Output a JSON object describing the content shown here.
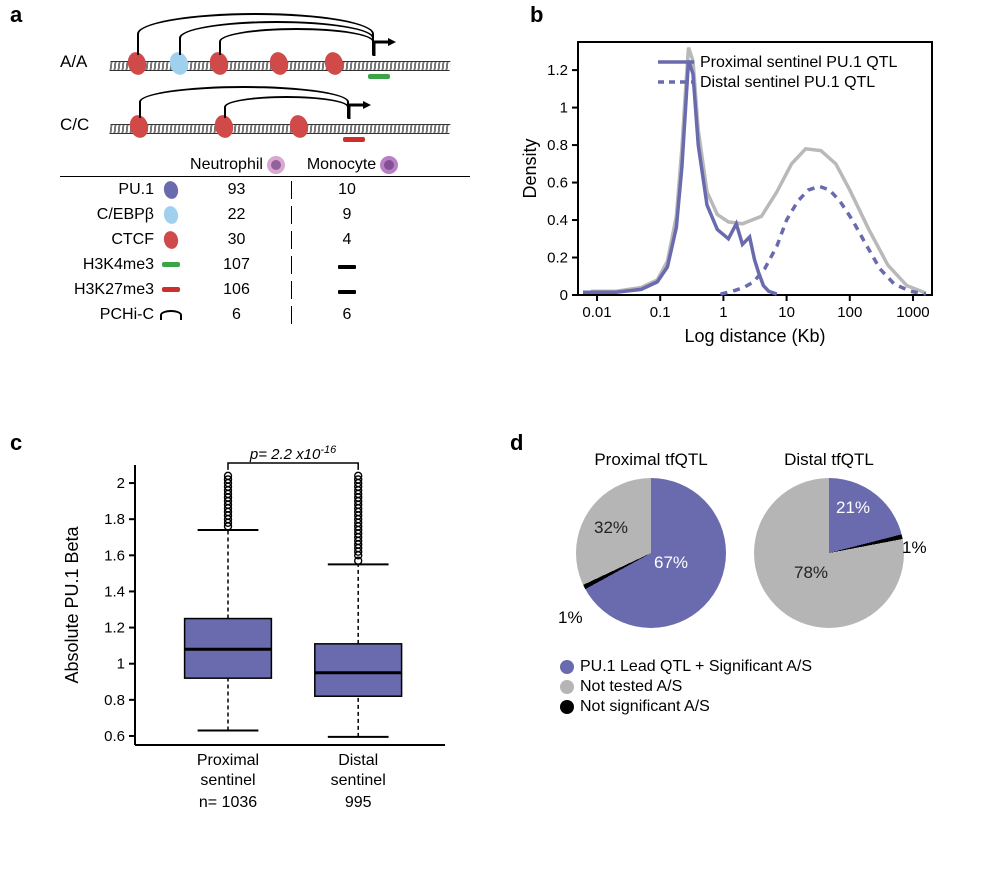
{
  "colors": {
    "pu1_purple": "#6a6aae",
    "cebp_blue": "#9fd1ee",
    "ctcf_red": "#cf4a48",
    "h3k4_green": "#3aa546",
    "h3k27_red": "#cf2f2a",
    "gray_line": "#b9b9b9",
    "black": "#000000",
    "background": "#ffffff",
    "panel_d_gray": "#b5b5b5",
    "neutrophil": "#d9a8d2",
    "monocyte": "#b97fc4"
  },
  "panel_labels": {
    "a": "a",
    "b": "b",
    "c": "c",
    "d": "d"
  },
  "panel_a": {
    "allele_top": "A/A",
    "allele_bottom": "C/C",
    "headers": {
      "col1": "Neutrophil",
      "col2": "Monocyte"
    },
    "rows": [
      {
        "key": "PU.1",
        "swatch": "oval",
        "color_key": "pu1_purple",
        "v1": "93",
        "v2": "10"
      },
      {
        "key": "C/EBPβ",
        "swatch": "oval",
        "color_key": "cebp_blue",
        "v1": "22",
        "v2": "9"
      },
      {
        "key": "CTCF",
        "swatch": "oval",
        "color_key": "ctcf_red",
        "v1": "30",
        "v2": "4"
      },
      {
        "key": "H3K4me3",
        "swatch": "bar",
        "color_key": "h3k4_green",
        "v1": "107",
        "v2": "—"
      },
      {
        "key": "H3K27me3",
        "swatch": "bar",
        "color_key": "h3k27_red",
        "v1": "106",
        "v2": "—"
      },
      {
        "key": "PCHi-C",
        "swatch": "arc",
        "color_key": "black",
        "v1": "6",
        "v2": "6"
      }
    ]
  },
  "panel_b": {
    "legend_solid": "Proximal sentinel PU.1 QTL",
    "legend_dashed": "Distal sentinel PU.1 QTL",
    "y_label": "Density",
    "x_label": "Log distance (Kb)",
    "x_ticks": [
      "0.01",
      "0.1",
      "1",
      "10",
      "100",
      "1000"
    ],
    "y_ticks": [
      "0",
      "0.2",
      "0.4",
      "0.6",
      "0.8",
      "1",
      "1.2"
    ],
    "xlim": [
      0.005,
      2000
    ],
    "ylim": [
      0,
      1.35
    ],
    "curve_gray": {
      "color_key": "gray_line",
      "width": 3.5,
      "style": "solid",
      "points": [
        [
          0.008,
          0.02
        ],
        [
          0.02,
          0.02
        ],
        [
          0.05,
          0.04
        ],
        [
          0.09,
          0.08
        ],
        [
          0.13,
          0.18
        ],
        [
          0.18,
          0.42
        ],
        [
          0.22,
          0.78
        ],
        [
          0.25,
          1.08
        ],
        [
          0.28,
          1.32
        ],
        [
          0.33,
          1.25
        ],
        [
          0.4,
          0.88
        ],
        [
          0.55,
          0.55
        ],
        [
          0.8,
          0.43
        ],
        [
          1.2,
          0.39
        ],
        [
          2,
          0.38
        ],
        [
          4,
          0.42
        ],
        [
          7,
          0.55
        ],
        [
          12,
          0.7
        ],
        [
          20,
          0.78
        ],
        [
          35,
          0.77
        ],
        [
          60,
          0.7
        ],
        [
          100,
          0.56
        ],
        [
          200,
          0.35
        ],
        [
          400,
          0.16
        ],
        [
          800,
          0.05
        ],
        [
          1600,
          0.01
        ]
      ]
    },
    "curve_solid": {
      "color_key": "pu1_purple",
      "width": 3.5,
      "style": "solid",
      "points": [
        [
          0.006,
          0.015
        ],
        [
          0.02,
          0.015
        ],
        [
          0.05,
          0.03
        ],
        [
          0.09,
          0.07
        ],
        [
          0.13,
          0.15
        ],
        [
          0.18,
          0.36
        ],
        [
          0.22,
          0.68
        ],
        [
          0.25,
          0.98
        ],
        [
          0.28,
          1.25
        ],
        [
          0.33,
          1.18
        ],
        [
          0.4,
          0.8
        ],
        [
          0.55,
          0.48
        ],
        [
          0.8,
          0.35
        ],
        [
          1.2,
          0.3
        ],
        [
          1.6,
          0.38
        ],
        [
          2.0,
          0.27
        ],
        [
          2.6,
          0.31
        ],
        [
          3.1,
          0.19
        ],
        [
          3.6,
          0.12
        ],
        [
          4.3,
          0.05
        ],
        [
          5.2,
          0.02
        ],
        [
          7,
          0.005
        ]
      ]
    },
    "curve_dashed": {
      "color_key": "pu1_purple",
      "width": 3.5,
      "style": "dashed",
      "points": [
        [
          0.9,
          0.005
        ],
        [
          1.4,
          0.02
        ],
        [
          2.1,
          0.04
        ],
        [
          3,
          0.07
        ],
        [
          4.5,
          0.14
        ],
        [
          7,
          0.26
        ],
        [
          10,
          0.4
        ],
        [
          15,
          0.5
        ],
        [
          22,
          0.56
        ],
        [
          33,
          0.58
        ],
        [
          48,
          0.56
        ],
        [
          70,
          0.5
        ],
        [
          110,
          0.4
        ],
        [
          180,
          0.27
        ],
        [
          300,
          0.14
        ],
        [
          500,
          0.06
        ],
        [
          900,
          0.02
        ],
        [
          1600,
          0.005
        ]
      ]
    }
  },
  "panel_c": {
    "p_text_prefix": "p= 2.2 x10",
    "p_exp": "-16",
    "y_label": "Absolute PU.1 Beta",
    "y_ticks": [
      "0.6",
      "0.8",
      "1",
      "1.2",
      "1.4",
      "1.6",
      "1.8",
      "2"
    ],
    "ylim": [
      0.55,
      2.1
    ],
    "box_color_key": "pu1_purple",
    "boxes": [
      {
        "x": 1,
        "label_top": "Proximal",
        "label_bot": "sentinel",
        "n_label": "n= 1036",
        "q1": 0.92,
        "median": 1.08,
        "q3": 1.25,
        "whisker_low": 0.63,
        "whisker_high": 1.74,
        "outliers": [
          1.76,
          1.78,
          1.8,
          1.82,
          1.84,
          1.86,
          1.88,
          1.9,
          1.92,
          1.94,
          1.96,
          1.98,
          2.0,
          2.02,
          2.04
        ]
      },
      {
        "x": 2,
        "label_top": "Distal",
        "label_bot": "sentinel",
        "n_label": "995",
        "q1": 0.82,
        "median": 0.95,
        "q3": 1.11,
        "whisker_low": 0.595,
        "whisker_high": 1.55,
        "outliers": [
          1.57,
          1.6,
          1.62,
          1.64,
          1.66,
          1.68,
          1.7,
          1.72,
          1.74,
          1.76,
          1.78,
          1.8,
          1.82,
          1.84,
          1.86,
          1.88,
          1.9,
          1.92,
          1.94,
          1.96,
          1.98,
          2.0,
          2.02,
          2.04
        ]
      }
    ]
  },
  "panel_d": {
    "titles": {
      "left": "Proximal tfQTL",
      "right": "Distal tfQTL"
    },
    "slices_left": [
      {
        "label": "67%",
        "pct": 67,
        "color_key": "pu1_purple"
      },
      {
        "label": "1%",
        "pct": 1,
        "color_key": "black"
      },
      {
        "label": "32%",
        "pct": 32,
        "color_key": "panel_d_gray"
      }
    ],
    "slices_right": [
      {
        "label": "21%",
        "pct": 21,
        "color_key": "pu1_purple"
      },
      {
        "label": "1%",
        "pct": 1,
        "color_key": "black"
      },
      {
        "label": "78%",
        "pct": 78,
        "color_key": "panel_d_gray"
      }
    ],
    "legend": [
      {
        "text": "PU.1 Lead QTL + Significant A/S",
        "color_key": "pu1_purple"
      },
      {
        "text": "Not tested A/S",
        "color_key": "panel_d_gray"
      },
      {
        "text": "Not significant A/S",
        "color_key": "black"
      }
    ]
  }
}
